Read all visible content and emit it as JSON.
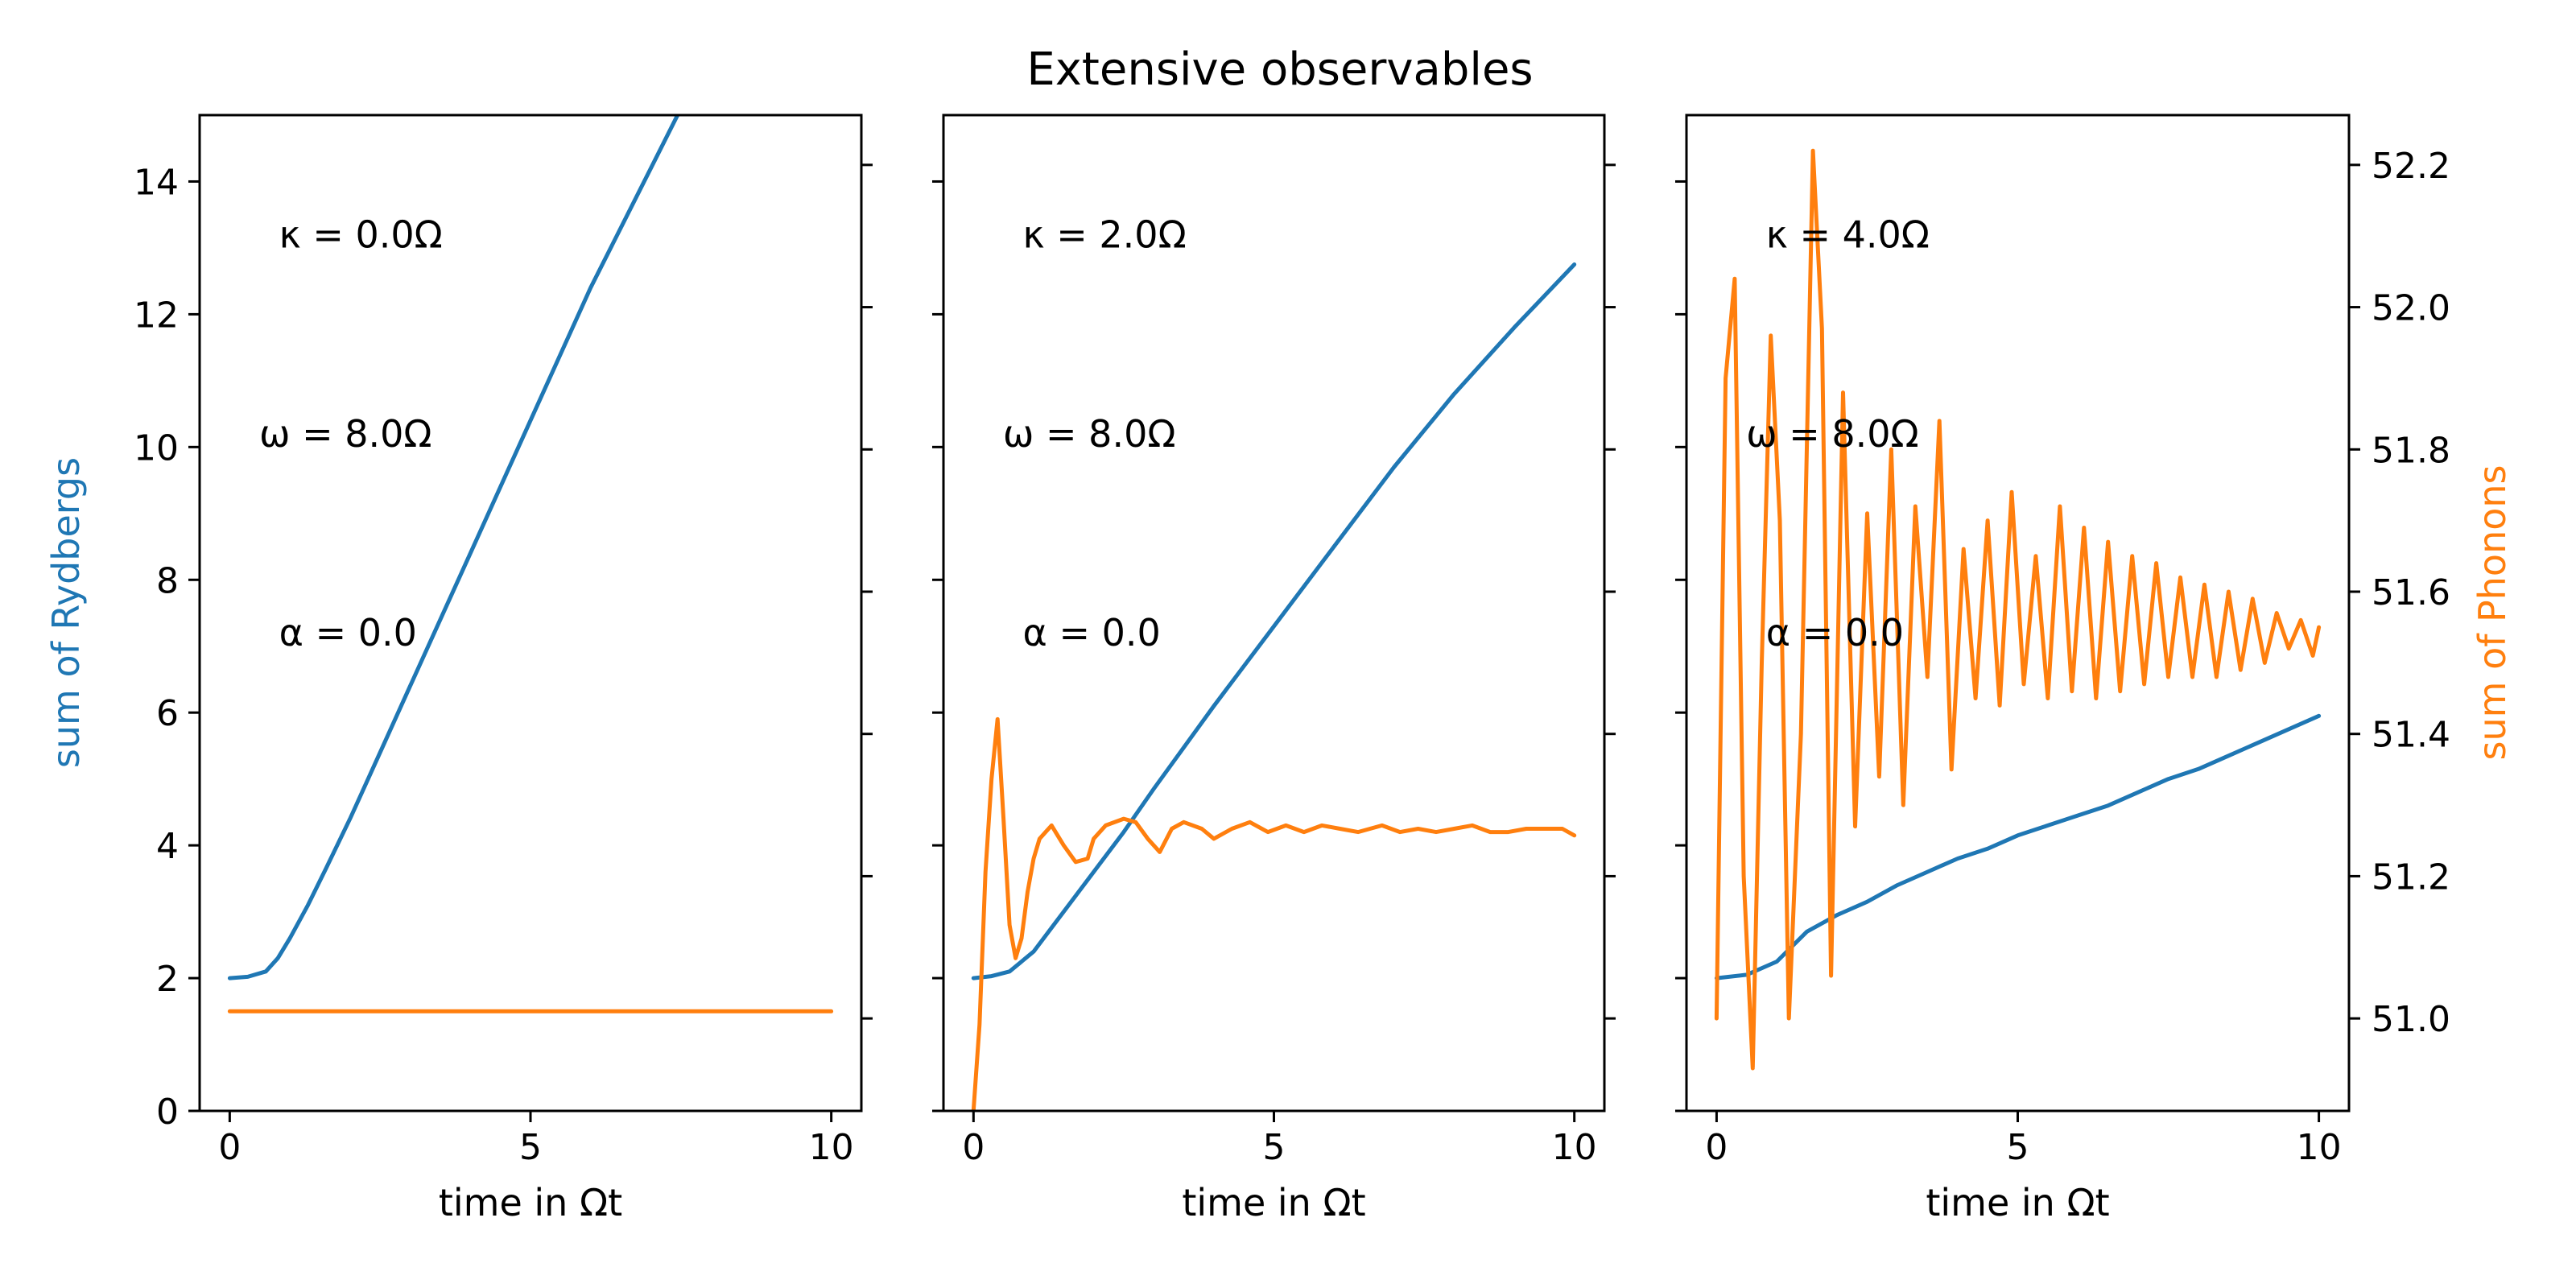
{
  "title": "Extensive observables",
  "colors": {
    "rydberg": "#1f77b4",
    "phonon": "#ff7f0e"
  },
  "left_ylabel": "sum of Rydbergs",
  "right_ylabel": "sum of Phonons",
  "chart_data": [
    {
      "type": "line",
      "xlabel": "time in Ωt",
      "xlim": [
        -0.5,
        10.5
      ],
      "ylim": [
        0,
        15
      ],
      "y2lim": [
        50.87,
        52.27
      ],
      "xticks": [
        "0",
        "5",
        "10"
      ],
      "yticks": [
        "0",
        "2",
        "4",
        "6",
        "8",
        "10",
        "12",
        "14"
      ],
      "y2ticks": [],
      "annotations": [
        "κ = 0.0Ω",
        "ω = 8.0Ω",
        "α = 0.0"
      ],
      "series": [
        {
          "name": "",
          "axis": "left",
          "color": "#1f77b4",
          "x": [
            0,
            0.3,
            0.6,
            0.8,
            1.0,
            1.3,
            1.6,
            2,
            2.5,
            3,
            4,
            5,
            6,
            7,
            8,
            8.5
          ],
          "y": [
            2.0,
            2.02,
            2.1,
            2.3,
            2.6,
            3.1,
            3.65,
            4.4,
            5.4,
            6.4,
            8.4,
            10.4,
            12.4,
            14.2,
            16.0,
            17.0
          ]
        },
        {
          "name": "",
          "axis": "left",
          "color": "#ff7f0e",
          "x": [
            0,
            10
          ],
          "y": [
            1.5,
            1.5
          ]
        }
      ]
    },
    {
      "type": "line",
      "xlabel": "time in Ωt",
      "xlim": [
        -0.5,
        10.5
      ],
      "ylim": [
        0,
        15
      ],
      "y2lim": [
        50.87,
        52.27
      ],
      "xticks": [
        "0",
        "5",
        "10"
      ],
      "yticks": [],
      "y2ticks": [],
      "annotations": [
        "κ = 2.0Ω",
        "ω = 8.0Ω",
        "α = 0.0"
      ],
      "series": [
        {
          "name": "",
          "axis": "left",
          "color": "#1f77b4",
          "x": [
            0,
            0.3,
            0.6,
            1.0,
            1.5,
            2,
            2.5,
            3,
            4,
            5,
            6,
            7,
            8,
            9,
            10
          ],
          "y": [
            2.0,
            2.03,
            2.1,
            2.4,
            3.0,
            3.6,
            4.2,
            4.85,
            6.1,
            7.3,
            8.5,
            9.7,
            10.8,
            11.8,
            12.75
          ]
        },
        {
          "name": "",
          "axis": "left",
          "color": "#ff7f0e",
          "x": [
            0,
            0.1,
            0.2,
            0.3,
            0.4,
            0.5,
            0.6,
            0.7,
            0.8,
            0.9,
            1.0,
            1.1,
            1.2,
            1.3,
            1.5,
            1.7,
            1.9,
            2.0,
            2.2,
            2.5,
            2.7,
            2.9,
            3.1,
            3.3,
            3.5,
            3.8,
            4.0,
            4.3,
            4.6,
            4.9,
            5.2,
            5.5,
            5.8,
            6.1,
            6.4,
            6.8,
            7.1,
            7.4,
            7.7,
            8.0,
            8.3,
            8.6,
            8.9,
            9.2,
            9.5,
            9.8,
            10.0
          ],
          "y": [
            0,
            1.3,
            3.6,
            5.0,
            5.9,
            4.4,
            2.8,
            2.3,
            2.6,
            3.3,
            3.8,
            4.1,
            4.2,
            4.3,
            4.0,
            3.75,
            3.8,
            4.1,
            4.3,
            4.4,
            4.35,
            4.1,
            3.9,
            4.25,
            4.35,
            4.25,
            4.1,
            4.25,
            4.35,
            4.2,
            4.3,
            4.2,
            4.3,
            4.25,
            4.2,
            4.3,
            4.2,
            4.25,
            4.2,
            4.25,
            4.3,
            4.2,
            4.2,
            4.25,
            4.25,
            4.25,
            4.15
          ]
        }
      ]
    },
    {
      "type": "line",
      "xlabel": "time in Ωt",
      "xlim": [
        -0.5,
        10.5
      ],
      "ylim": [
        0,
        15
      ],
      "y2lim": [
        50.87,
        52.27
      ],
      "xticks": [
        "0",
        "5",
        "10"
      ],
      "yticks": [],
      "y2ticks": [
        "51.0",
        "51.2",
        "51.4",
        "51.6",
        "51.8",
        "52.0",
        "52.2"
      ],
      "annotations": [
        "κ = 4.0Ω",
        "ω = 8.0Ω",
        "α = 0.0"
      ],
      "series": [
        {
          "name": "",
          "axis": "left",
          "color": "#1f77b4",
          "x": [
            0,
            0.5,
            1.0,
            1.5,
            2,
            2.5,
            3,
            3.5,
            4,
            4.5,
            5,
            5.5,
            6,
            6.5,
            7,
            7.5,
            8,
            8.5,
            9,
            9.5,
            10
          ],
          "y": [
            2.0,
            2.05,
            2.25,
            2.7,
            2.95,
            3.15,
            3.4,
            3.6,
            3.8,
            3.95,
            4.15,
            4.3,
            4.45,
            4.6,
            4.8,
            5.0,
            5.15,
            5.35,
            5.55,
            5.75,
            5.95
          ]
        },
        {
          "name": "",
          "axis": "right",
          "color": "#ff7f0e",
          "x": [
            0,
            0.15,
            0.3,
            0.45,
            0.6,
            0.75,
            0.9,
            1.05,
            1.2,
            1.4,
            1.6,
            1.75,
            1.9,
            2.1,
            2.3,
            2.5,
            2.7,
            2.9,
            3.1,
            3.3,
            3.5,
            3.7,
            3.9,
            4.1,
            4.3,
            4.5,
            4.7,
            4.9,
            5.1,
            5.3,
            5.5,
            5.7,
            5.9,
            6.1,
            6.3,
            6.5,
            6.7,
            6.9,
            7.1,
            7.3,
            7.5,
            7.7,
            7.9,
            8.1,
            8.3,
            8.5,
            8.7,
            8.9,
            9.1,
            9.3,
            9.5,
            9.7,
            9.9,
            10.0
          ],
          "y": [
            51.0,
            51.9,
            52.04,
            51.2,
            50.93,
            51.5,
            51.96,
            51.7,
            51.0,
            51.4,
            52.22,
            51.97,
            51.06,
            51.88,
            51.27,
            51.71,
            51.34,
            51.8,
            51.3,
            51.72,
            51.48,
            51.84,
            51.35,
            51.66,
            51.45,
            51.7,
            51.44,
            51.74,
            51.47,
            51.65,
            51.45,
            51.72,
            51.46,
            51.69,
            51.45,
            51.67,
            51.46,
            51.65,
            51.47,
            51.64,
            51.48,
            51.62,
            51.48,
            51.61,
            51.48,
            51.6,
            51.49,
            51.59,
            51.5,
            51.57,
            51.52,
            51.56,
            51.51,
            51.55
          ]
        }
      ]
    }
  ]
}
